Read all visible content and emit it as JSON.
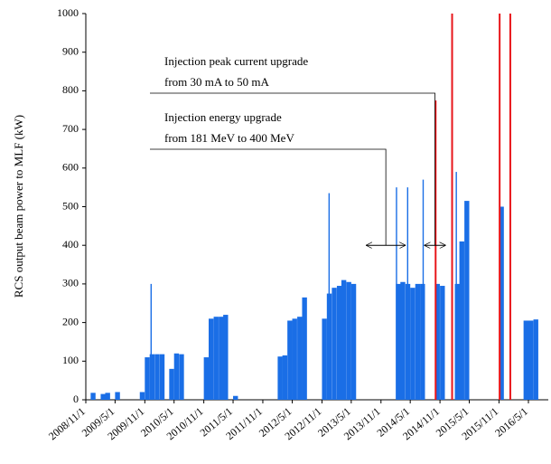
{
  "chart_data": {
    "type": "bar",
    "y_label": "RCS output beam power to MLF (kW)",
    "ylim": [
      0,
      1000
    ],
    "yticks": [
      0,
      100,
      200,
      300,
      400,
      500,
      600,
      700,
      800,
      900,
      1000
    ],
    "xlim": [
      "2008/11/1",
      "2016/9/1"
    ],
    "xticks": [
      "2008/11/1",
      "2009/5/1",
      "2009/11/1",
      "2010/5/1",
      "2010/11/1",
      "2011/5/1",
      "2011/11/1",
      "2012/5/1",
      "2012/11/1",
      "2013/5/1",
      "2013/11/1",
      "2014/5/1",
      "2014/11/1",
      "2015/5/1",
      "2015/11/1",
      "2016/5/1"
    ],
    "annotations": [
      {
        "lines": [
          "Injection peak current upgrade",
          "from 30 mA to 50 mA"
        ],
        "x": "2014/10/1",
        "y": 400
      },
      {
        "lines": [
          "Injection energy upgrade",
          "from 181 MeV to 400 MeV"
        ],
        "x": "2013/12/1",
        "y": 400
      }
    ],
    "series": [
      {
        "color": "#1a6ee6",
        "x": [
          "2008/12/1",
          "2009/2/1",
          "2009/3/1",
          "2009/5/1",
          "2009/10/1",
          "2009/11/1",
          "2009/12/1",
          "2010/1/1",
          "2010/2/1",
          "2010/4/1",
          "2010/5/1",
          "2010/6/1",
          "2010/11/1",
          "2010/12/1",
          "2011/1/1",
          "2011/2/1",
          "2011/3/1",
          "2011/5/1",
          "2012/2/1",
          "2012/3/1",
          "2012/4/1",
          "2012/5/1",
          "2012/6/1",
          "2012/7/1",
          "2012/11/1",
          "2012/12/1",
          "2013/1/1",
          "2013/2/1",
          "2013/3/1",
          "2013/4/1",
          "2013/5/1",
          "2014/2/1",
          "2014/3/1",
          "2014/4/1",
          "2014/5/1",
          "2014/6/1",
          "2014/7/1",
          "2014/10/1",
          "2014/11/1",
          "2015/2/1",
          "2015/3/1",
          "2015/4/1",
          "2015/11/1",
          "2016/4/1",
          "2016/5/1",
          "2016/6/1"
        ],
        "values": [
          18,
          15,
          18,
          20,
          20,
          110,
          118,
          118,
          118,
          80,
          120,
          118,
          110,
          210,
          215,
          215,
          220,
          10,
          112,
          115,
          205,
          210,
          215,
          265,
          210,
          275,
          290,
          295,
          310,
          305,
          300,
          300,
          305,
          300,
          290,
          300,
          300,
          300,
          295,
          300,
          410,
          515,
          500,
          205,
          205,
          208
        ]
      },
      {
        "color": "#1a6ee6",
        "x": [
          "2009/12/10",
          "2012/12/15",
          "2014/2/5",
          "2014/4/15",
          "2014/7/20",
          "2015/2/10"
        ],
        "values": [
          300,
          535,
          550,
          550,
          570,
          590
        ]
      },
      {
        "color": "#e8161b",
        "x": [
          "2014/10/5",
          "2015/1/15",
          "2015/11/5",
          "2016/1/10"
        ],
        "values": [
          775,
          1000,
          1000,
          1000
        ]
      }
    ]
  }
}
